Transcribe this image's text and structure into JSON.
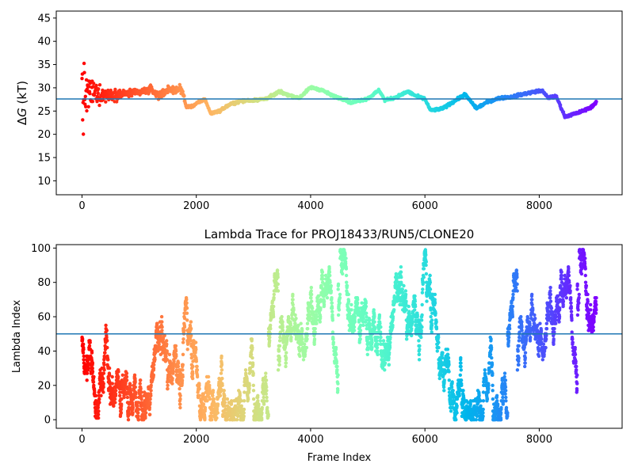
{
  "chart_data": [
    {
      "type": "scatter",
      "title": "",
      "xlabel": "",
      "ylabel": "ΔG (kT)",
      "ylabel_parts": {
        "delta": "Δ",
        "var": "G",
        "unit": " (kT)"
      },
      "xlim": [
        -450,
        9450
      ],
      "ylim": [
        7,
        46.5
      ],
      "xticks": [
        0,
        2000,
        4000,
        6000,
        8000
      ],
      "xtick_labels": [
        "0",
        "2000",
        "4000",
        "6000",
        "8000"
      ],
      "yticks": [
        10,
        15,
        20,
        25,
        30,
        35,
        40,
        45
      ],
      "ytick_labels": [
        "10",
        "15",
        "20",
        "25",
        "30",
        "35",
        "40",
        "45"
      ],
      "hline": {
        "y": 27.6,
        "color": "#1f77b4"
      },
      "colormap": "rainbow (red at frame 0 → violet at final frame)",
      "legend": "none",
      "grid": false,
      "frame_count": 9000,
      "trend_keypoints": [
        [
          0,
          27.6
        ],
        [
          150,
          29.0
        ],
        [
          400,
          28.5
        ],
        [
          700,
          28.7
        ],
        [
          1000,
          29.0
        ],
        [
          1200,
          29.6
        ],
        [
          1350,
          28.4
        ],
        [
          1500,
          29.5
        ],
        [
          1750,
          29.7
        ],
        [
          1820,
          26.0
        ],
        [
          1900,
          25.9
        ],
        [
          2050,
          26.9
        ],
        [
          2150,
          27.6
        ],
        [
          2250,
          24.5
        ],
        [
          2400,
          25.0
        ],
        [
          2600,
          26.5
        ],
        [
          2800,
          27.2
        ],
        [
          3000,
          27.3
        ],
        [
          3200,
          27.6
        ],
        [
          3350,
          28.4
        ],
        [
          3450,
          29.2
        ],
        [
          3600,
          28.5
        ],
        [
          3800,
          27.8
        ],
        [
          4000,
          30.1
        ],
        [
          4200,
          29.5
        ],
        [
          4400,
          28.2
        ],
        [
          4600,
          27.5
        ],
        [
          4700,
          26.8
        ],
        [
          5000,
          27.7
        ],
        [
          5200,
          29.5
        ],
        [
          5300,
          27.3
        ],
        [
          5500,
          28.0
        ],
        [
          5700,
          29.2
        ],
        [
          5850,
          28.2
        ],
        [
          6000,
          27.6
        ],
        [
          6100,
          25.1
        ],
        [
          6300,
          25.5
        ],
        [
          6500,
          27.0
        ],
        [
          6700,
          28.6
        ],
        [
          6900,
          25.6
        ],
        [
          7100,
          27.0
        ],
        [
          7300,
          27.8
        ],
        [
          7500,
          28.0
        ],
        [
          7700,
          28.6
        ],
        [
          7900,
          29.1
        ],
        [
          8050,
          29.4
        ],
        [
          8150,
          27.9
        ],
        [
          8300,
          28.1
        ],
        [
          8450,
          23.8
        ],
        [
          8700,
          24.7
        ],
        [
          8900,
          25.8
        ],
        [
          9000,
          26.8
        ]
      ]
    },
    {
      "type": "scatter",
      "title": "Lambda Trace for PROJ18433/RUN5/CLONE20",
      "xlabel": "Frame Index",
      "ylabel": "Lambda Index",
      "xlim": [
        -450,
        9450
      ],
      "ylim": [
        -5,
        102
      ],
      "xticks": [
        0,
        2000,
        4000,
        6000,
        8000
      ],
      "xtick_labels": [
        "0",
        "2000",
        "4000",
        "6000",
        "8000"
      ],
      "yticks": [
        0,
        20,
        40,
        60,
        80,
        100
      ],
      "ytick_labels": [
        "0",
        "20",
        "40",
        "60",
        "80",
        "100"
      ],
      "hline": {
        "y": 50,
        "color": "#1f77b4"
      },
      "colormap": "rainbow (red at frame 0 → violet at final frame)",
      "legend": "none",
      "grid": false,
      "frame_count": 9000,
      "lambda_range": [
        0,
        99
      ]
    }
  ]
}
